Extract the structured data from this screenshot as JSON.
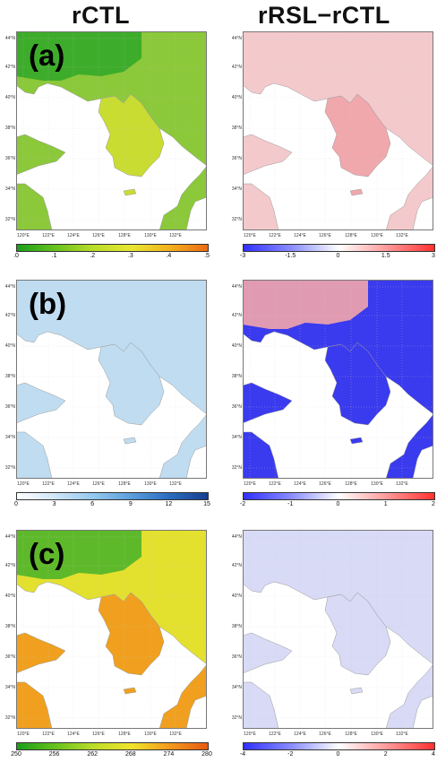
{
  "titles": {
    "left": "rCTL",
    "right": "rRSL−rCTL"
  },
  "lat_labels": [
    "44°N",
    "42°N",
    "40°N",
    "38°N",
    "36°N",
    "34°N",
    "32°N"
  ],
  "lon_labels": [
    "120°E",
    "122°E",
    "124°E",
    "126°E",
    "128°E",
    "130°E",
    "132°E"
  ],
  "rows": [
    {
      "label": "(a)",
      "left_colorbar": {
        "ticks": [
          ".0",
          ".1",
          ".2",
          ".3",
          ".4",
          ".5"
        ],
        "colors": [
          "#1a9e1a",
          "#66c21d",
          "#bcdc2a",
          "#e8e830",
          "#f2b01e",
          "#ee6a13"
        ]
      },
      "right_colorbar": {
        "ticks": [
          "-3",
          "-1.5",
          "0",
          "1.5",
          "3"
        ],
        "colors": [
          "#3030ff",
          "#8a8cff",
          "#ffffff",
          "#ff9a9a",
          "#ff3030"
        ]
      }
    },
    {
      "label": "(b)",
      "left_colorbar": {
        "ticks": [
          "0",
          "3",
          "6",
          "9",
          "12",
          "15"
        ],
        "colors": [
          "#ffffff",
          "#cfe6f7",
          "#94c8ef",
          "#5a9edb",
          "#2a6cc0",
          "#163f8c"
        ]
      },
      "right_colorbar": {
        "ticks": [
          "-2",
          "-1",
          "0",
          "1",
          "2"
        ],
        "colors": [
          "#3030ff",
          "#8a8cff",
          "#ffffff",
          "#ff9a9a",
          "#ff3030"
        ]
      }
    },
    {
      "label": "(c)",
      "left_colorbar": {
        "ticks": [
          "250",
          "256",
          "262",
          "268",
          "274",
          "280"
        ],
        "colors": [
          "#1a9e1a",
          "#66c21d",
          "#bcdc2a",
          "#f0e42a",
          "#f29a1e",
          "#e85a10"
        ]
      },
      "right_colorbar": {
        "ticks": [
          "-4",
          "-2",
          "0",
          "2",
          "4"
        ],
        "colors": [
          "#3030ff",
          "#8a8cff",
          "#ffffff",
          "#ff9a9a",
          "#ff3030"
        ]
      }
    }
  ],
  "colors": {
    "a_left_land": "#8bc83a",
    "a_left_north": "#35a82a",
    "a_left_korea": "#c9dc32",
    "a_right_land": "#f3c9cc",
    "a_right_korea": "#f0a8ad",
    "b_left_land": "#bfdcf1",
    "b_right_north": "#f3a6ab",
    "b_right_land": "#3a3aee",
    "c_left_north": "#4fb52a",
    "c_left_mid": "#e3e02e",
    "c_left_south": "#f0a01e",
    "c_right_land": "#d8daf6",
    "ocean": "#ffffff"
  }
}
